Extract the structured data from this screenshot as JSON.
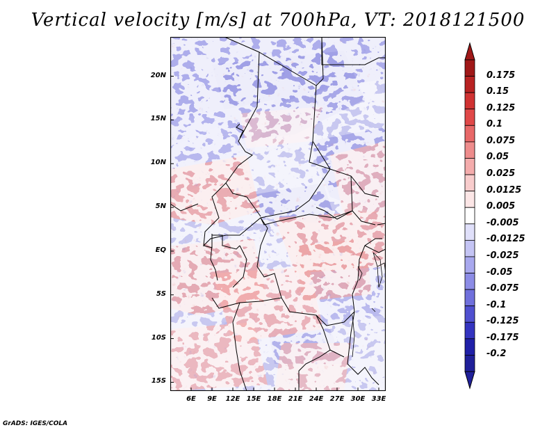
{
  "title": "Vertical velocity [m/s] at 700hPa, VT: 2018121500",
  "footer": "GrADS: IGES/COLA",
  "map": {
    "lon_range": [
      3,
      34
    ],
    "lat_range": [
      -16,
      24.5
    ],
    "lat_ticks": [
      {
        "value": 20,
        "label": "20N"
      },
      {
        "value": 15,
        "label": "15N"
      },
      {
        "value": 10,
        "label": "10N"
      },
      {
        "value": 5,
        "label": "5N"
      },
      {
        "value": 0,
        "label": "EQ"
      },
      {
        "value": -5,
        "label": "5S"
      },
      {
        "value": -10,
        "label": "10S"
      },
      {
        "value": -15,
        "label": "15S"
      }
    ],
    "lon_ticks": [
      {
        "value": 6,
        "label": "6E"
      },
      {
        "value": 9,
        "label": "9E"
      },
      {
        "value": 12,
        "label": "12E"
      },
      {
        "value": 15,
        "label": "15E"
      },
      {
        "value": 18,
        "label": "18E"
      },
      {
        "value": 21,
        "label": "21E"
      },
      {
        "value": 24,
        "label": "24E"
      },
      {
        "value": 27,
        "label": "27E"
      },
      {
        "value": 30,
        "label": "30E"
      },
      {
        "value": 33,
        "label": "33E"
      }
    ]
  },
  "colorbar": {
    "levels": [
      {
        "label": "0.175",
        "color": "#a01818"
      },
      {
        "label": "0.15",
        "color": "#b82222"
      },
      {
        "label": "0.125",
        "color": "#d03232"
      },
      {
        "label": "0.1",
        "color": "#e04848"
      },
      {
        "label": "0.075",
        "color": "#e86868"
      },
      {
        "label": "0.05",
        "color": "#ee8c8c"
      },
      {
        "label": "0.025",
        "color": "#f4acac"
      },
      {
        "label": "0.0125",
        "color": "#f8cccc"
      },
      {
        "label": "0.005",
        "color": "#fce6e6"
      },
      {
        "label": "-0.005",
        "color": "#ffffff"
      },
      {
        "label": "-0.0125",
        "color": "#e0e0fa"
      },
      {
        "label": "-0.025",
        "color": "#c4c4f4"
      },
      {
        "label": "-0.05",
        "color": "#a8a8ee"
      },
      {
        "label": "-0.075",
        "color": "#8c8ce6"
      },
      {
        "label": "-0.1",
        "color": "#7070dc"
      },
      {
        "label": "-0.125",
        "color": "#5050d0"
      },
      {
        "label": "-0.175",
        "color": "#3434c0"
      },
      {
        "label": "-0.2",
        "color": "#2020a8"
      }
    ],
    "top_color": "#a01818",
    "bottom_color": "#20209a"
  }
}
